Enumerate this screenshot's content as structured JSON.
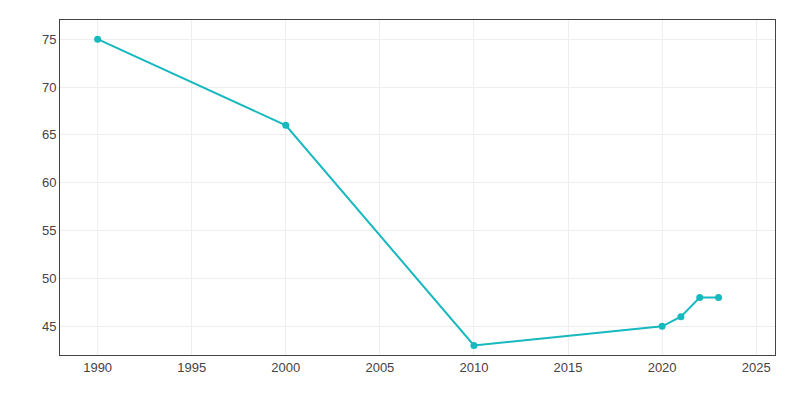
{
  "chart_data": {
    "type": "line",
    "x": [
      1990,
      2000,
      2010,
      2020,
      2021,
      2022,
      2023
    ],
    "values": [
      75,
      66,
      43,
      45,
      46,
      48,
      48
    ],
    "color": "#17b8be",
    "marker": "circle",
    "xlim": [
      1988,
      2026
    ],
    "ylim": [
      42,
      77
    ],
    "xticks": [
      1990,
      1995,
      2000,
      2005,
      2010,
      2015,
      2020,
      2025
    ],
    "yticks": [
      45,
      50,
      55,
      60,
      65,
      70,
      75
    ],
    "grid": true
  }
}
